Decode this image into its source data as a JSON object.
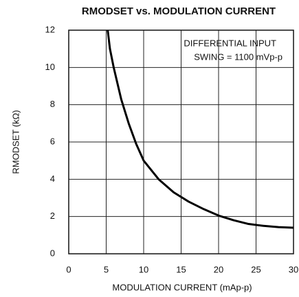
{
  "chart_data": {
    "type": "line",
    "title": "RMODSET vs. MODULATION CURRENT",
    "x_label": "MODULATION CURRENT (mAp-p)",
    "y_label": "RMODSET (kΩ)",
    "annotations": [
      "DIFFERENTIAL INPUT",
      "SWING = 1100 mVp-p"
    ],
    "x": [
      5.2,
      5.5,
      6,
      7,
      8,
      9,
      10,
      12,
      14,
      16,
      18,
      20,
      22,
      24,
      26,
      28,
      30
    ],
    "series": [
      {
        "name": "RMODSET",
        "color": "#000000",
        "values": [
          12,
          11,
          10,
          8.3,
          7,
          5.9,
          5.0,
          4.0,
          3.3,
          2.8,
          2.4,
          2.05,
          1.8,
          1.6,
          1.5,
          1.43,
          1.4
        ]
      }
    ],
    "xlim": [
      0,
      30
    ],
    "xticks": [
      0,
      5,
      10,
      15,
      20,
      25,
      30
    ],
    "ylim": [
      0,
      12
    ],
    "yticks": [
      0,
      2,
      4,
      6,
      8,
      10,
      12
    ],
    "grid": true
  }
}
